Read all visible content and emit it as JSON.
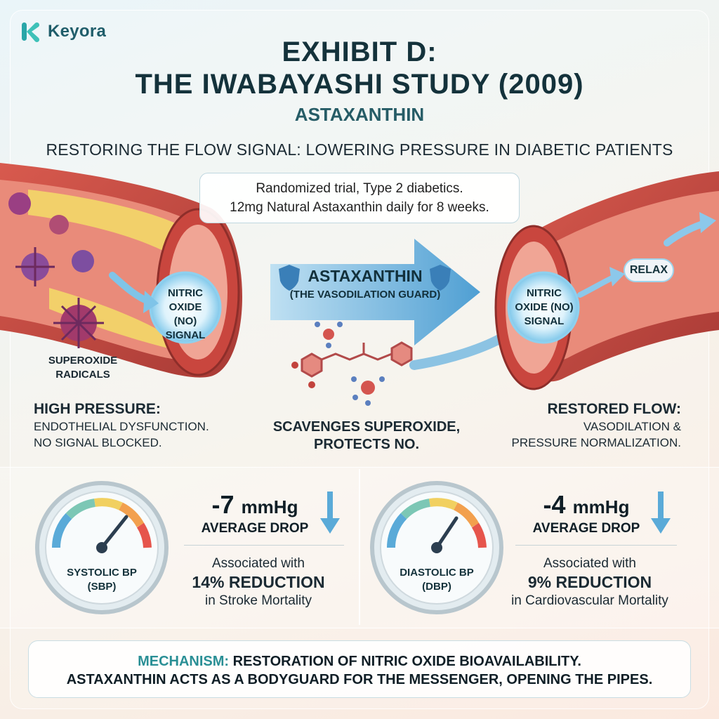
{
  "brand": {
    "name": "Keyora",
    "icon": "k-logo-icon",
    "color": "#2aa6a8"
  },
  "title": {
    "line1": "EXHIBIT D:",
    "line2": "THE IWABAYASHI STUDY (2009)",
    "compound": "ASTAXANTHIN"
  },
  "subtitle": "RESTORING THE FLOW SIGNAL: LOWERING PRESSURE IN DIABETIC PATIENTS",
  "trial": {
    "line1": "Randomized trial, Type 2 diabetics.",
    "line2": "12mg Natural Astaxanthin daily for 8 weeks."
  },
  "left_vessel": {
    "no_line1": "NITRIC",
    "no_line2": "OXIDE (NO)",
    "no_line3": "SIGNAL",
    "radicals_line1": "SUPEROXIDE",
    "radicals_line2": "RADICALS",
    "heading": "HIGH PRESSURE:",
    "desc1": "ENDOTHELIAL DYSFUNCTION.",
    "desc2": "NO SIGNAL BLOCKED."
  },
  "guard": {
    "name": "ASTAXANTHIN",
    "subtitle": "(THE VASODILATION GUARD)",
    "action1": "SCAVENGES SUPEROXIDE,",
    "action2": "PROTECTS NO.",
    "icon": "shield-icon"
  },
  "right_vessel": {
    "no_line1": "NITRIC",
    "no_line2": "OXIDE (NO)",
    "no_line3": "SIGNAL",
    "relax": "RELAX",
    "heading": "RESTORED FLOW:",
    "desc1": "VASODILATION &",
    "desc2": "PRESSURE NORMALIZATION."
  },
  "systolic": {
    "gauge_line1": "SYSTOLIC BP",
    "gauge_line2": "(SBP)",
    "value": "-7",
    "unit": "mmHg",
    "label": "AVERAGE DROP",
    "assoc": "Associated with",
    "pct": "14% REDUCTION",
    "outcome": "in Stroke Mortality"
  },
  "diastolic": {
    "gauge_line1": "DIASTOLIC BP",
    "gauge_line2": "(DBP)",
    "value": "-4",
    "unit": "mmHg",
    "label": "AVERAGE DROP",
    "assoc": "Associated with",
    "pct": "9% REDUCTION",
    "outcome": "in Cardiovascular Mortality"
  },
  "mechanism": {
    "key": "MECHANISM:",
    "line1": "RESTORATION OF NITRIC OXIDE BIOAVAILABILITY.",
    "line2": "ASTAXANTHIN ACTS AS A BODYGUARD FOR THE MESSENGER, OPENING THE PIPES."
  },
  "colors": {
    "accent": "#2a8f95",
    "vessel": "#c8473f",
    "arrow": "#5aa9d6",
    "radical": "#8e3b77"
  }
}
